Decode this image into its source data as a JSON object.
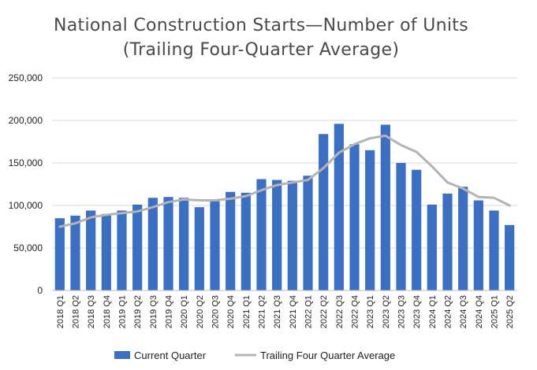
{
  "chart_data": {
    "type": "bar",
    "title": "National Construction Starts—Number of Units",
    "subtitle": "(Trailing Four-Quarter Average)",
    "categories": [
      "2018 Q1",
      "2018 Q2",
      "2018 Q3",
      "2018 Q4",
      "2019 Q1",
      "2019 Q2",
      "2019 Q3",
      "2019 Q4",
      "2020 Q1",
      "2020 Q2",
      "2020 Q3",
      "2020 Q4",
      "2021 Q1",
      "2021 Q2",
      "2021 Q3",
      "2021 Q4",
      "2022 Q1",
      "2022 Q2",
      "2022 Q3",
      "2022 Q4",
      "2023 Q1",
      "2023 Q2",
      "2023 Q3",
      "2023 Q4",
      "2024 Q1",
      "2024 Q2",
      "2024 Q3",
      "2024 Q4",
      "2025 Q1",
      "2025 Q2"
    ],
    "series": [
      {
        "name": "Current Quarter",
        "kind": "bar",
        "color": "#3a6fc4",
        "values": [
          85000,
          88000,
          94000,
          90000,
          94000,
          101000,
          109000,
          110000,
          109000,
          98000,
          105000,
          116000,
          115000,
          131000,
          130000,
          129000,
          135000,
          184000,
          196000,
          172000,
          165000,
          195000,
          150000,
          142000,
          101000,
          114000,
          122000,
          106000,
          94000,
          77000
        ]
      },
      {
        "name": "Trailing Four Quarter Average",
        "kind": "line",
        "color": "#b4b4b4",
        "values": [
          75000,
          79000,
          86000,
          89000,
          91000,
          93000,
          98000,
          104000,
          107000,
          106000,
          106000,
          108000,
          111000,
          118000,
          124000,
          127000,
          130000,
          144000,
          162000,
          172000,
          179000,
          182000,
          171000,
          163000,
          146000,
          127000,
          120000,
          110000,
          109000,
          100000
        ]
      }
    ],
    "ylim": [
      0,
      250000
    ],
    "y_ticks": [
      0,
      50000,
      100000,
      150000,
      200000,
      250000
    ],
    "y_tick_labels": [
      "0",
      "50,000",
      "100,000",
      "150,000",
      "200,000",
      "250,000"
    ],
    "xlabel": "",
    "ylabel": "",
    "grid": true,
    "legend": "bottom"
  }
}
